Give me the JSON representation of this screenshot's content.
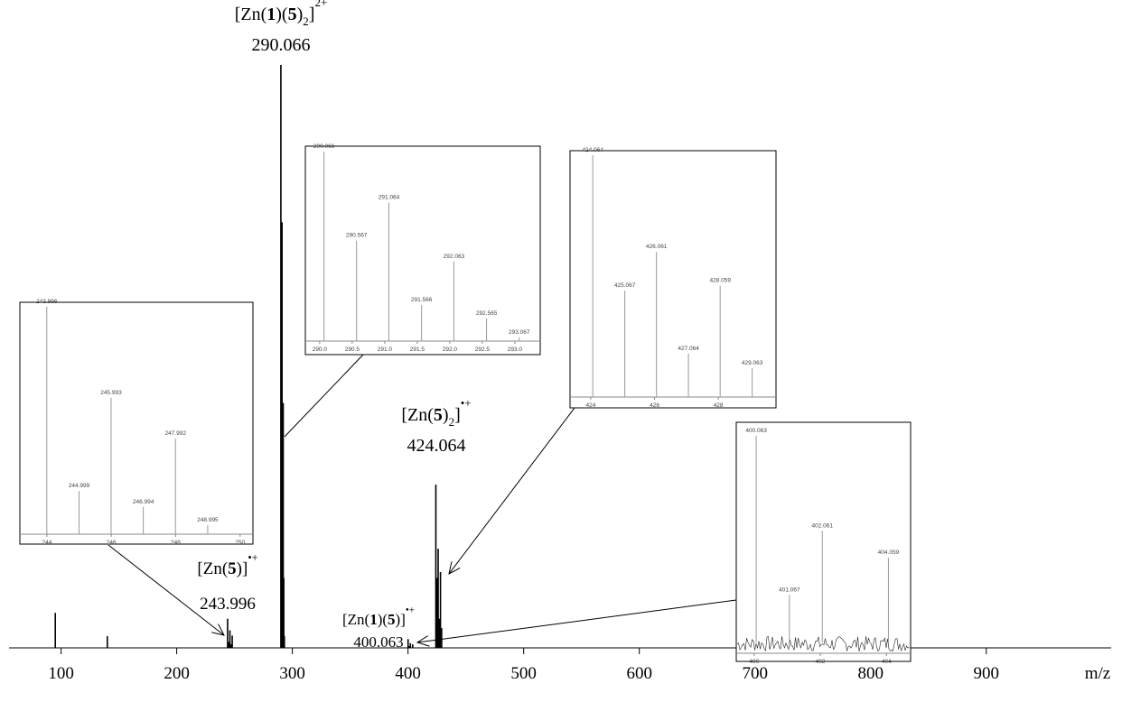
{
  "chart_data": [
    {
      "type": "stem",
      "x_label": "m/z",
      "color": "#000000",
      "x": [
        95,
        140,
        243.996,
        244.999,
        245.993,
        246.994,
        247.992,
        290.066,
        290.567,
        291.064,
        291.566,
        292.063,
        292.565,
        293.067,
        400.063,
        401.067,
        402.061,
        404.059,
        424.064,
        425.067,
        426.061,
        427.064,
        428.059,
        429.063
      ],
      "values": [
        6,
        2,
        5,
        1,
        3,
        0.6,
        2.1,
        100,
        53,
        73,
        19,
        42,
        12,
        2,
        1.5,
        0.3,
        0.8,
        0.6,
        28,
        12,
        17,
        5,
        13,
        3.4
      ],
      "xlim": [
        55,
        1008
      ],
      "ylim": [
        0,
        100
      ],
      "xticks": [
        100,
        200,
        300,
        400,
        500,
        600,
        700,
        800,
        900
      ],
      "annotations": [
        {
          "parts": [
            {
              "text": "[Zn(",
              "style": "normal"
            },
            {
              "text": "1",
              "style": "bold"
            },
            {
              "text": ")(",
              "style": "normal"
            },
            {
              "text": "5",
              "style": "bold"
            },
            {
              "text": ")",
              "style": "normal"
            },
            {
              "text": "2",
              "style": "sub"
            },
            {
              "text": "]",
              "style": "normal"
            },
            {
              "text": "2+",
              "style": "sup"
            }
          ],
          "mz": "290.066"
        },
        {
          "parts": [
            {
              "text": "[Zn(",
              "style": "normal"
            },
            {
              "text": "5",
              "style": "bold"
            },
            {
              "text": ")",
              "style": "normal"
            },
            {
              "text": "2",
              "style": "sub"
            },
            {
              "text": "]",
              "style": "normal"
            },
            {
              "text": "•+",
              "style": "sup"
            }
          ],
          "mz": "424.064"
        },
        {
          "parts": [
            {
              "text": "[Zn(",
              "style": "normal"
            },
            {
              "text": "5",
              "style": "bold"
            },
            {
              "text": ")]",
              "style": "normal"
            },
            {
              "text": "•+",
              "style": "sup"
            }
          ],
          "mz": "243.996"
        },
        {
          "parts": [
            {
              "text": "[Zn(",
              "style": "normal"
            },
            {
              "text": "1",
              "style": "bold"
            },
            {
              "text": ")(",
              "style": "normal"
            },
            {
              "text": "5",
              "style": "bold"
            },
            {
              "text": ")]",
              "style": "normal"
            },
            {
              "text": "•+",
              "style": "sup"
            }
          ],
          "mz": "400.063"
        }
      ]
    },
    {
      "type": "stem",
      "color": "#999999",
      "x": [
        243.996,
        244.999,
        245.993,
        246.994,
        247.992,
        248.995
      ],
      "values": [
        100,
        19,
        60,
        12,
        42,
        4
      ],
      "xlim": [
        243.16,
        250.4
      ],
      "ylim": [
        0,
        100
      ],
      "xticks": [
        244,
        246,
        248,
        250
      ]
    },
    {
      "type": "stem",
      "color": "#999999",
      "x": [
        290.066,
        290.567,
        291.064,
        291.566,
        292.063,
        292.565,
        293.067
      ],
      "values": [
        100,
        53,
        73,
        19,
        42,
        12,
        2
      ],
      "xlim": [
        289.78,
        293.39
      ],
      "ylim": [
        0,
        100
      ],
      "xticks": [
        {
          "value": 290,
          "label": "290.0"
        },
        {
          "value": 290.5,
          "label": "290.5"
        },
        {
          "value": 291,
          "label": "291.0"
        },
        {
          "value": 291.5,
          "label": "291.5"
        },
        {
          "value": 292,
          "label": "292.0"
        },
        {
          "value": 292.5,
          "label": "292.5"
        },
        {
          "value": 293,
          "label": "293.0"
        }
      ]
    },
    {
      "type": "stem",
      "color": "#999999",
      "x": [
        424.064,
        425.067,
        426.061,
        427.064,
        428.059,
        429.063
      ],
      "values": [
        100,
        44,
        60,
        18,
        46,
        12
      ],
      "xlim": [
        423.35,
        429.81
      ],
      "ylim": [
        0,
        100
      ],
      "xticks": [
        424,
        426,
        428
      ]
    },
    {
      "type": "stem",
      "color": "#999999",
      "x": [
        400.063,
        401.067,
        402.061,
        404.059
      ],
      "values": [
        100,
        23,
        54,
        41
      ],
      "xlim": [
        399.46,
        404.73
      ],
      "ylim": [
        0,
        100
      ],
      "xticks": [
        400,
        402,
        404
      ]
    }
  ]
}
